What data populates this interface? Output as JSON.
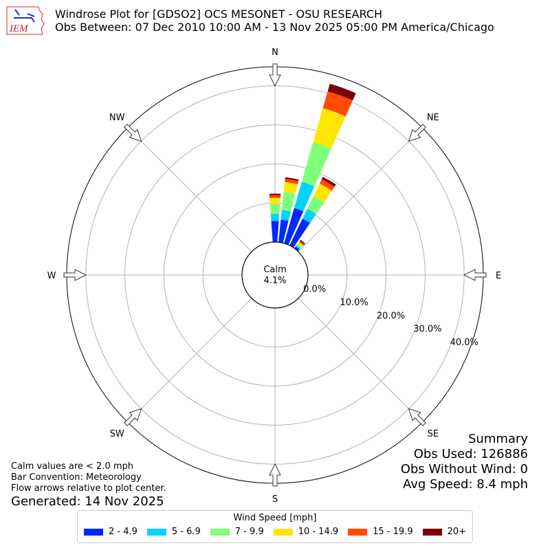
{
  "header": {
    "title_line1": "Windrose Plot for [GDSO2] OCS MESONET - OSU RESEARCH",
    "title_line2": "Obs Between: 07 Dec 2010 10:00 AM - 13 Nov 2025 05:00 PM America/Chicago",
    "logo_text": "IEM"
  },
  "calm": {
    "label": "Calm",
    "value": "4.1%"
  },
  "notes": {
    "line1": "Calm values are < 2.0 mph",
    "line2": "Bar Convention: Meteorology",
    "line3": "Flow arrows relative to plot center.",
    "generated": "Generated: 14 Nov 2025"
  },
  "summary": {
    "title": "Summary",
    "obs_used": "Obs Used: 126886",
    "obs_without_wind": "Obs Without Wind: 0",
    "avg_speed": "Avg Speed: 8.4 mph"
  },
  "legend": {
    "title": "Wind Speed [mph]",
    "items": [
      {
        "label": "2 - 4.9",
        "color": "#0028ff"
      },
      {
        "label": "5 - 6.9",
        "color": "#00d4ff"
      },
      {
        "label": "7 - 9.9",
        "color": "#7dff7a"
      },
      {
        "label": "10 - 14.9",
        "color": "#ffe600"
      },
      {
        "label": "15 - 19.9",
        "color": "#ff4a00"
      },
      {
        "label": "20+",
        "color": "#800000"
      }
    ]
  },
  "chart_data": {
    "type": "windrose",
    "title": "Windrose Plot for [GDSO2] OCS MESONET - OSU RESEARCH",
    "subtitle": "Obs Between: 07 Dec 2010 10:00 AM - 13 Nov 2025 05:00 PM America/Chicago",
    "directions": [
      "N",
      "NE",
      "E",
      "SE",
      "S",
      "SW",
      "W",
      "NW"
    ],
    "radial_ticks": [
      "0.0%",
      "10.0%",
      "20.0%",
      "30.0%",
      "40.0%"
    ],
    "rlim": [
      0,
      43.5
    ],
    "calm_pct": 4.1,
    "bins": [
      "2 - 4.9",
      "5 - 6.9",
      "7 - 9.9",
      "10 - 14.9",
      "15 - 19.9",
      "20+"
    ],
    "sectors": [
      {
        "direction_deg": 0,
        "values": [
          5.4,
          1.8,
          2.6,
          1.5,
          0.7,
          0.4
        ]
      },
      {
        "direction_deg": 10,
        "values": [
          5.8,
          2.5,
          4.7,
          2.5,
          0.8,
          0.4
        ]
      },
      {
        "direction_deg": 20,
        "values": [
          9.4,
          7.0,
          10.6,
          9.0,
          4.5,
          2.0
        ]
      },
      {
        "direction_deg": 30,
        "values": [
          7.6,
          2.8,
          3.6,
          3.6,
          1.2,
          0.7
        ]
      },
      {
        "direction_deg": 40,
        "values": [
          0.6,
          0.4,
          0.5,
          0.5,
          0.4,
          0.3
        ]
      }
    ]
  }
}
